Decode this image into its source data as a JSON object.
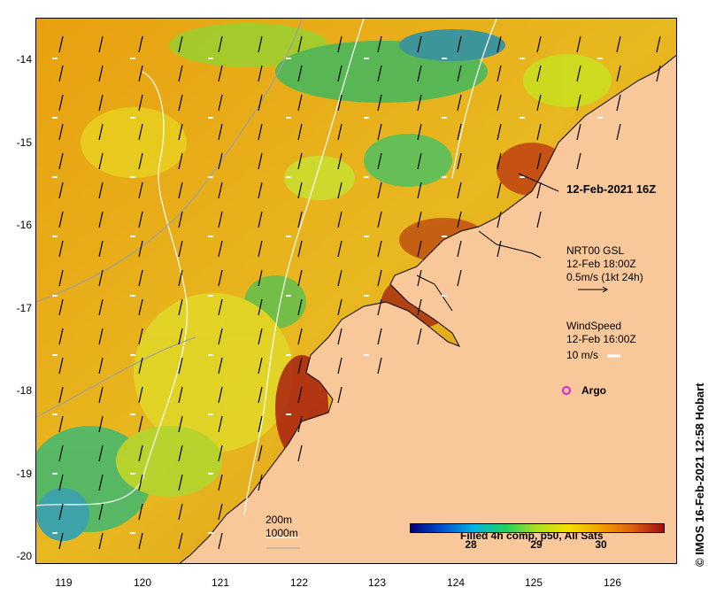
{
  "map": {
    "lat_labels": [
      "-14",
      "-15",
      "-16",
      "-17",
      "-18",
      "-19",
      "-20"
    ],
    "lon_labels": [
      "119",
      "120",
      "121",
      "122",
      "123",
      "124",
      "125",
      "126"
    ],
    "image_time": "12-Feb-2021 16Z",
    "current_legend": {
      "line1": "NRT00 GSL",
      "line2": "12-Feb 18:00Z",
      "line3": "0.5m/s (1kt 24h)"
    },
    "wind_legend": {
      "line1": "WindSpeed",
      "line2": "12-Feb 16:00Z",
      "line3": "10 m/s"
    },
    "argo_label": "Argo",
    "contour_legend": {
      "line1": "200m",
      "line2": "1000m"
    },
    "colorbar": {
      "title": "Filled 4h comp, p50, All Sats",
      "ticks": [
        "28",
        "29",
        "30"
      ]
    },
    "credit": "© IMOS 16-Feb-2021 12:58 Hobart",
    "colors": {
      "land": "#f9c89a",
      "sst_warm": "#e8900e",
      "sst_mid": "#e8c818",
      "sst_cool": "#30b860",
      "wind_arrow": "#ffffff",
      "current_arrow": "#000000",
      "argo": "#e020e0"
    }
  }
}
